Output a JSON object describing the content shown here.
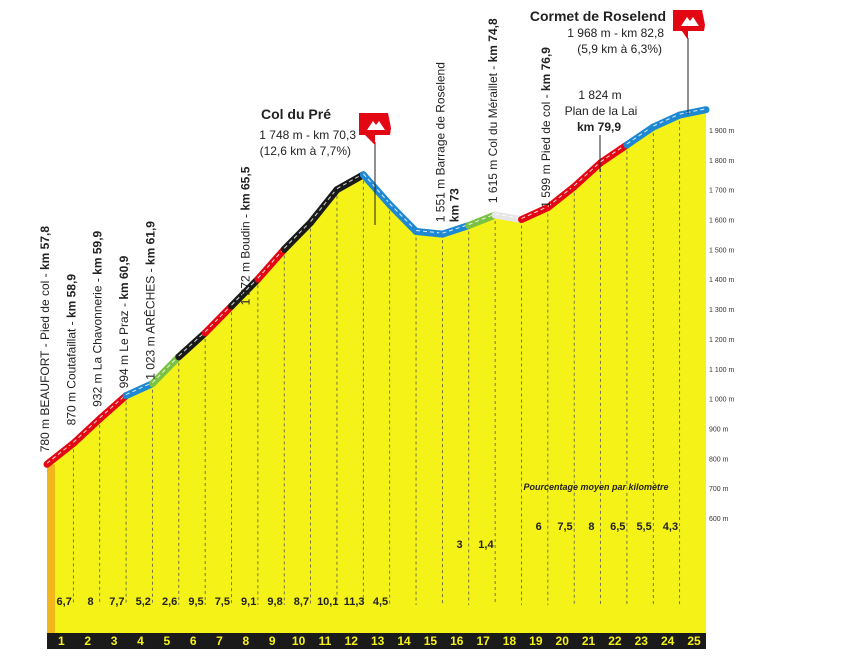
{
  "chart_data": {
    "type": "area",
    "xlabel": "",
    "ylabel": "",
    "x_range": [
      0,
      25
    ],
    "ylim": [
      600,
      1950
    ],
    "y_ticks": [
      600,
      700,
      800,
      900,
      1000,
      1100,
      1200,
      1300,
      1400,
      1500,
      1600,
      1700,
      1800,
      1900
    ],
    "y_tick_suffix": " m",
    "x_ticks": [
      "1",
      "2",
      "3",
      "4",
      "5",
      "6",
      "7",
      "8",
      "9",
      "10",
      "11",
      "12",
      "13",
      "14",
      "15",
      "16",
      "17",
      "18",
      "19",
      "20",
      "21",
      "22",
      "23",
      "24",
      "25"
    ],
    "profile": [
      {
        "km": 0,
        "alt": 780
      },
      {
        "km": 1,
        "alt": 850
      },
      {
        "km": 2,
        "alt": 932
      },
      {
        "km": 3,
        "alt": 1010
      },
      {
        "km": 4,
        "alt": 1050
      },
      {
        "km": 5,
        "alt": 1140
      },
      {
        "km": 6,
        "alt": 1220
      },
      {
        "km": 7,
        "alt": 1310
      },
      {
        "km": 8,
        "alt": 1400
      },
      {
        "km": 9,
        "alt": 1500
      },
      {
        "km": 10,
        "alt": 1590
      },
      {
        "km": 11,
        "alt": 1700
      },
      {
        "km": 12,
        "alt": 1750
      },
      {
        "km": 13,
        "alt": 1650
      },
      {
        "km": 14,
        "alt": 1560
      },
      {
        "km": 15,
        "alt": 1551
      },
      {
        "km": 16,
        "alt": 1580
      },
      {
        "km": 17,
        "alt": 1615
      },
      {
        "km": 18,
        "alt": 1600
      },
      {
        "km": 19,
        "alt": 1640
      },
      {
        "km": 20,
        "alt": 1710
      },
      {
        "km": 21,
        "alt": 1790
      },
      {
        "km": 22,
        "alt": 1850
      },
      {
        "km": 23,
        "alt": 1910
      },
      {
        "km": 24,
        "alt": 1950
      },
      {
        "km": 25,
        "alt": 1968
      }
    ],
    "slope_colors": [
      "#e30613",
      "#e30613",
      "#e30613",
      "#1e88d2",
      "#7cc242",
      "#1a1a1a",
      "#e30613",
      "#1a1a1a",
      "#e30613",
      "#1a1a1a",
      "#1a1a1a",
      "#1a1a1a",
      "#1e88d2",
      "#1e88d2",
      "#1e88d2",
      "#1e88d2",
      "#7cc242",
      "#e6e6e6",
      "#e30613",
      "#e30613",
      "#e30613",
      "#e30613",
      "#1e88d2",
      "#1e88d2",
      "#1e88d2"
    ],
    "gradients": [
      "6,7",
      "8",
      "7,7",
      "5,2",
      "2,6",
      "9,5",
      "7,5",
      "9,1",
      "9,8",
      "8,7",
      "10,1",
      "11,3",
      "4,5",
      "",
      "",
      "3",
      "1,4",
      "",
      "6",
      "7,5",
      "8",
      "6,5",
      "5,5",
      "4,3",
      ""
    ],
    "gradients_legend": "Pourcentage moyen par kilomètre",
    "annotations": [
      {
        "km": 0,
        "alt": 780,
        "label": "780 m BEAUFORT - Pied de col - ",
        "km_label": "km 57,8"
      },
      {
        "km": 1,
        "alt": 870,
        "label": "870 m Coutafaillat - ",
        "km_label": "km 58,9"
      },
      {
        "km": 2,
        "alt": 932,
        "label": "932 m La Chavonnerie - ",
        "km_label": "km 59,9"
      },
      {
        "km": 3,
        "alt": 994,
        "label": "994 m Le Praz - ",
        "km_label": "km 60,9"
      },
      {
        "km": 4,
        "alt": 1023,
        "label": "1 023 m ARÊCHES - ",
        "km_label": "km 61,9"
      },
      {
        "km": 7.6,
        "alt": 1272,
        "label": "1 272 m Boudin - ",
        "km_label": "km 65,5"
      },
      {
        "km": 15,
        "alt": 1551,
        "label": "1 551 m Barrage de Roselend",
        "km_label": "km 73"
      },
      {
        "km": 17,
        "alt": 1615,
        "label": "1 615 m Col du Méraillet - ",
        "km_label": "km 74,8"
      },
      {
        "km": 19,
        "alt": 1599,
        "label": "1 599 m Pied de col - ",
        "km_label": "km 76,9"
      }
    ],
    "summits": [
      {
        "name": "Col du Pré",
        "line1": "1 748 m - km 70,3",
        "line2": "(12,6 km à 7,7%)"
      },
      {
        "name": "Cormet de Roselend",
        "line1": "1 968 m - km 82,8",
        "line2": "(5,9 km à 6,3%)"
      }
    ],
    "plateau_note": {
      "alt": "1 824 m",
      "name": "Plan de la Lai",
      "km_label": "km 79,9"
    },
    "colors": {
      "fill": "#f5f218",
      "ground": "#1a1a1a",
      "red": "#e30613",
      "blue": "#1e88d2",
      "green": "#7cc242",
      "black": "#1a1a1a"
    }
  }
}
